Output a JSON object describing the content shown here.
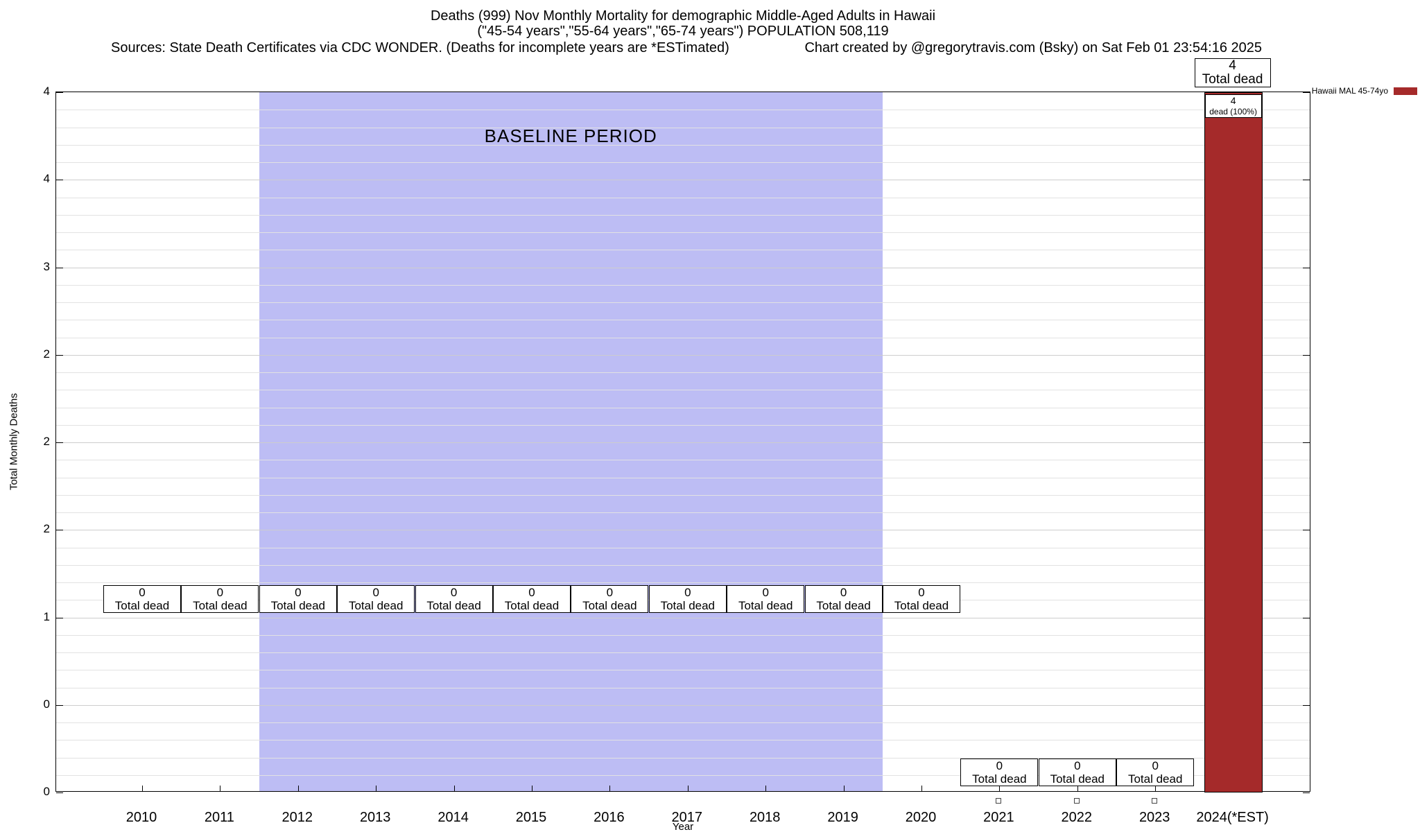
{
  "header": {
    "title_line1": "Deaths (999) Nov Monthly Mortality for demographic Middle-Aged Adults in Hawaii",
    "title_line2": "(\"45-54 years\",\"55-64 years\",\"65-74 years\") POPULATION 508,119",
    "sources": "Sources: State Death Certificates via CDC WONDER. (Deaths for incomplete years are *ESTimated)",
    "credit": "Chart created by @gregorytravis.com (Bsky) on Sat Feb 01 23:54:16 2025"
  },
  "chart_data": {
    "type": "bar",
    "title": "Deaths (999) Nov Monthly Mortality for demographic Middle-Aged Adults in Hawaii",
    "subtitle": "(\"45-54 years\",\"55-64 years\",\"65-74 years\") POPULATION 508,119",
    "xlabel": "Year",
    "ylabel": "Total Monthly Deaths",
    "ylim": [
      0,
      4
    ],
    "grid": true,
    "legend_position": "top-right",
    "categories": [
      "2010",
      "2011",
      "2012",
      "2013",
      "2014",
      "2015",
      "2016",
      "2017",
      "2018",
      "2019",
      "2020",
      "2021",
      "2022",
      "2023",
      "2024(*EST)"
    ],
    "series": [
      {
        "name": "Hawaii MAL 45-74yo",
        "color": "#a52a2a",
        "values": [
          0,
          0,
          0,
          0,
          0,
          0,
          0,
          0,
          0,
          0,
          0,
          0,
          0,
          0,
          4
        ]
      }
    ],
    "ytick_values": [
      0,
      0.5,
      1,
      1.5,
      2,
      2.5,
      3,
      3.5,
      4
    ],
    "ytick_labels": [
      "0",
      "0",
      "1",
      "2",
      "2",
      "2",
      "3",
      "4",
      "4"
    ],
    "baseline_band": {
      "label": "BASELINE PERIOD",
      "from_index": 1.5,
      "to_index": 9.5,
      "color": "#bdbdf4"
    },
    "annotations": {
      "zero_boxes_high": {
        "line1": "0",
        "line2": "Total dead",
        "top_value": 1.185,
        "categories": [
          "2010",
          "2011",
          "2012",
          "2013",
          "2014",
          "2015",
          "2016",
          "2017",
          "2018",
          "2019",
          "2020"
        ]
      },
      "zero_boxes_low": {
        "line1": "0",
        "line2": "Total dead",
        "top_value": 0.194,
        "categories": [
          "2021",
          "2022",
          "2023"
        ]
      },
      "bar_top_label": {
        "line1": "4",
        "line2": "Total dead",
        "category": "2024(*EST)"
      },
      "bar_inner_label": {
        "line1": "4",
        "line2": "dead (100%)",
        "category": "2024(*EST)"
      },
      "under_axis_markers": {
        "categories": [
          "2021",
          "2022",
          "2023"
        ]
      }
    }
  }
}
